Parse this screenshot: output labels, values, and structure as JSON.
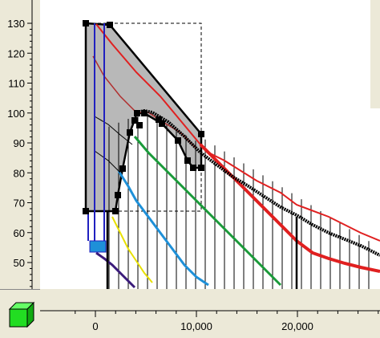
{
  "y_axis": {
    "ticks": [
      {
        "value": 130,
        "label": "130"
      },
      {
        "value": 120,
        "label": "120"
      },
      {
        "value": 110,
        "label": "110"
      },
      {
        "value": 100,
        "label": "100"
      },
      {
        "value": 90,
        "label": "90"
      },
      {
        "value": 80,
        "label": "80"
      },
      {
        "value": 70,
        "label": "70"
      },
      {
        "value": 60,
        "label": "60"
      },
      {
        "value": 50,
        "label": "50"
      }
    ]
  },
  "x_axis": {
    "ticks": [
      {
        "value": 0,
        "label": "0"
      },
      {
        "value": 10000,
        "label": "10,000"
      },
      {
        "value": 20000,
        "label": "20,000"
      }
    ]
  },
  "toolbar": {
    "view_icon": "green-cube-icon"
  },
  "colors": {
    "background": "#ece9d8",
    "viewport": "#ffffff",
    "polygon_fill": "#b8b8b8",
    "red": "#e02020",
    "black": "#000000",
    "green": "#1a9a3a",
    "cyan": "#1e90d8",
    "yellow": "#e8e000",
    "blue": "#2020c0",
    "purple": "#3a1a7a",
    "cube": "#22dd22"
  }
}
